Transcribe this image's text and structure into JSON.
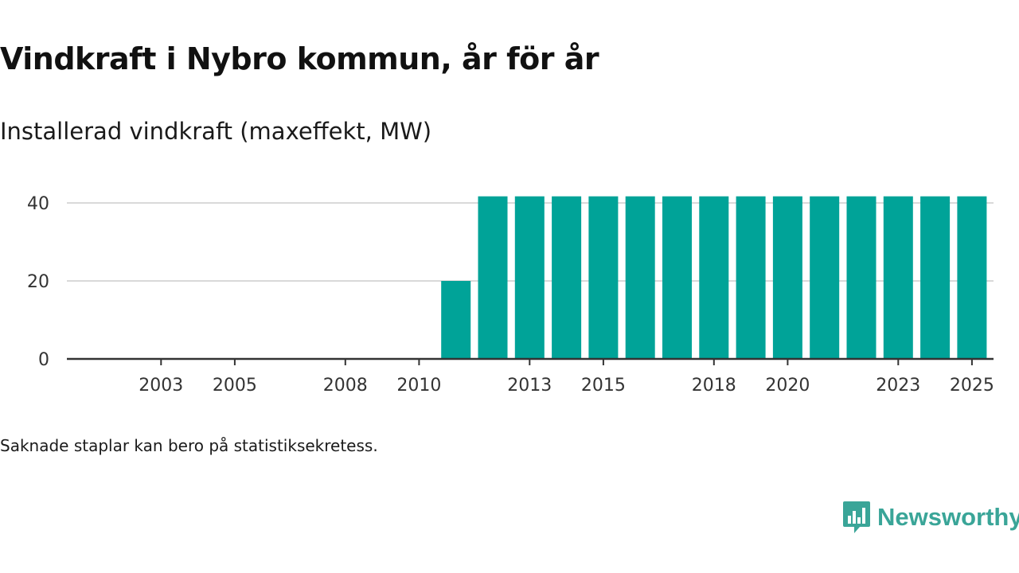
{
  "header": {
    "title": "Vindkraft i Nybro kommun, år för år",
    "subtitle": "Installerad vindkraft (maxeffekt, MW)"
  },
  "footer": {
    "note": "Saknade staplar kan bero på statistiksekretess.",
    "brand": "Newsworthy"
  },
  "colors": {
    "bar": "#00a398",
    "brand": "#3aa598",
    "grid": "#d9d9d9",
    "axis": "#333333"
  },
  "chart_data": {
    "type": "bar",
    "title": "Vindkraft i Nybro kommun, år för år",
    "subtitle": "Installerad vindkraft (maxeffekt, MW)",
    "xlabel": "",
    "ylabel": "",
    "categories": [
      "2002",
      "2003",
      "2004",
      "2005",
      "2006",
      "2007",
      "2008",
      "2009",
      "2010",
      "2011",
      "2012",
      "2013",
      "2014",
      "2015",
      "2016",
      "2017",
      "2018",
      "2019",
      "2020",
      "2021",
      "2022",
      "2023",
      "2024",
      "2025"
    ],
    "values": [
      0,
      0,
      0,
      0,
      0,
      0,
      0,
      0,
      0,
      20,
      41.7,
      41.7,
      41.7,
      41.7,
      41.7,
      41.7,
      41.7,
      41.7,
      41.7,
      41.7,
      41.7,
      41.7,
      41.7,
      41.7
    ],
    "x_tick_labels": [
      "2003",
      "2005",
      "2008",
      "2010",
      "2013",
      "2015",
      "2018",
      "2020",
      "2023",
      "2025"
    ],
    "y_ticks": [
      "0",
      "20",
      "40"
    ],
    "ylim": [
      0,
      40
    ],
    "grid": true,
    "legend": "none"
  }
}
